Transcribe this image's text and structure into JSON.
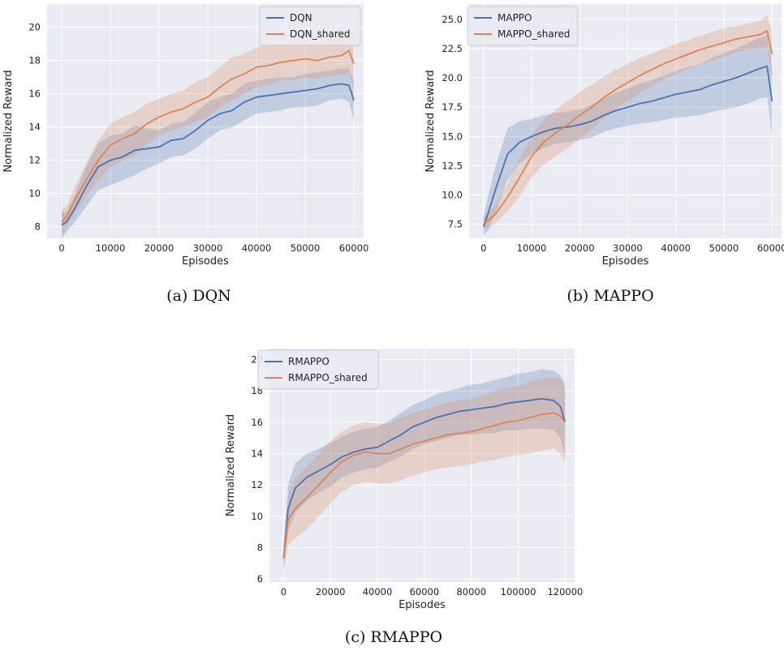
{
  "captions": [
    "(a) DQN",
    "(b) MAPPO",
    "(c) RMAPPO"
  ],
  "colors": {
    "blue": "#4c72b0",
    "orange": "#dd8452",
    "panel_bg": "#eaeaf2",
    "grid": "#ffffff"
  },
  "chart_data": [
    {
      "type": "line",
      "xlabel": "Episodes",
      "ylabel": "Normalized Reward",
      "xlim": [
        -3000,
        62000
      ],
      "ylim": [
        7.3,
        21.4
      ],
      "xticks": [
        0,
        10000,
        20000,
        30000,
        40000,
        50000,
        60000
      ],
      "yticks": [
        8,
        10,
        12,
        14,
        16,
        18,
        20
      ],
      "ytick_labels": [
        "8",
        "10",
        "12",
        "14",
        "16",
        "18",
        "20"
      ],
      "legend_position": "top-right",
      "grid": true,
      "series": [
        {
          "name": "DQN",
          "color": "#4c72b0",
          "x": [
            0,
            1000,
            2500,
            5000,
            7500,
            10000,
            12500,
            15000,
            17500,
            20000,
            22500,
            25000,
            27500,
            30000,
            32500,
            35000,
            37500,
            40000,
            42500,
            45000,
            47500,
            50000,
            52500,
            55000,
            57500,
            59000,
            60000
          ],
          "y": [
            8.1,
            8.3,
            9.0,
            10.4,
            11.6,
            12.0,
            12.2,
            12.6,
            12.7,
            12.8,
            13.2,
            13.3,
            13.8,
            14.4,
            14.8,
            15.0,
            15.5,
            15.8,
            15.9,
            16.0,
            16.1,
            16.2,
            16.3,
            16.5,
            16.6,
            16.5,
            15.6
          ],
          "band": [
            0.8,
            0.6,
            0.8,
            1.2,
            1.4,
            1.5,
            1.4,
            1.5,
            1.2,
            1.0,
            1.0,
            1.0,
            1.1,
            1.1,
            1.0,
            1.0,
            1.1,
            1.0,
            1.0,
            1.0,
            0.9,
            1.0,
            1.0,
            0.9,
            0.9,
            1.0,
            1.2
          ]
        },
        {
          "name": "DQN_shared",
          "color": "#dd8452",
          "x": [
            0,
            1000,
            2500,
            5000,
            7500,
            10000,
            12500,
            15000,
            17500,
            20000,
            22500,
            25000,
            27500,
            30000,
            32500,
            35000,
            37500,
            40000,
            42500,
            45000,
            47500,
            50000,
            52500,
            55000,
            57500,
            59000,
            60000
          ],
          "y": [
            8.3,
            8.6,
            9.5,
            10.8,
            12.0,
            12.9,
            13.3,
            13.6,
            14.2,
            14.6,
            14.9,
            15.1,
            15.5,
            15.8,
            16.4,
            16.9,
            17.2,
            17.6,
            17.7,
            17.9,
            18.0,
            18.1,
            18.0,
            18.2,
            18.3,
            18.6,
            17.8
          ],
          "band": [
            0.8,
            0.6,
            0.8,
            1.0,
            1.2,
            1.3,
            1.3,
            1.3,
            1.2,
            1.1,
            1.1,
            1.1,
            1.2,
            1.2,
            1.2,
            1.3,
            1.2,
            1.2,
            1.2,
            1.1,
            1.2,
            1.1,
            1.1,
            1.1,
            1.2,
            1.3,
            1.5
          ]
        }
      ]
    },
    {
      "type": "line",
      "xlabel": "Episodes",
      "ylabel": "Normalized Reward",
      "xlim": [
        -3000,
        62000
      ],
      "ylim": [
        6.3,
        26.3
      ],
      "xticks": [
        0,
        10000,
        20000,
        30000,
        40000,
        50000,
        60000
      ],
      "yticks": [
        7.5,
        10.0,
        12.5,
        15.0,
        17.5,
        20.0,
        22.5,
        25.0
      ],
      "ytick_labels": [
        "7.5",
        "10.0",
        "12.5",
        "15.0",
        "17.5",
        "20.0",
        "22.5",
        "25.0"
      ],
      "legend_position": "top-left",
      "grid": true,
      "series": [
        {
          "name": "MAPPO",
          "color": "#4c72b0",
          "x": [
            0,
            1000,
            2500,
            5000,
            7500,
            10000,
            12500,
            15000,
            17500,
            20000,
            22500,
            25000,
            27500,
            30000,
            32500,
            35000,
            37500,
            40000,
            42500,
            45000,
            47500,
            50000,
            52500,
            55000,
            57500,
            59000,
            60000
          ],
          "y": [
            7.3,
            8.5,
            10.5,
            13.5,
            14.5,
            15.0,
            15.4,
            15.7,
            15.8,
            16.0,
            16.3,
            16.8,
            17.2,
            17.5,
            17.8,
            18.0,
            18.3,
            18.6,
            18.8,
            19.0,
            19.4,
            19.7,
            20.0,
            20.4,
            20.8,
            21.0,
            18.0
          ],
          "band": [
            0.8,
            1.5,
            2.0,
            2.2,
            1.8,
            1.5,
            1.4,
            1.3,
            1.3,
            1.3,
            1.4,
            1.4,
            1.5,
            1.6,
            1.7,
            1.8,
            1.9,
            2.0,
            2.1,
            2.2,
            2.3,
            2.4,
            2.5,
            2.6,
            2.6,
            2.6,
            3.0
          ]
        },
        {
          "name": "MAPPO_shared",
          "color": "#dd8452",
          "x": [
            0,
            1000,
            2500,
            5000,
            7500,
            10000,
            12500,
            15000,
            17500,
            20000,
            22500,
            25000,
            27500,
            30000,
            32500,
            35000,
            37500,
            40000,
            42500,
            45000,
            47500,
            50000,
            52500,
            55000,
            57500,
            59000,
            60000
          ],
          "y": [
            7.6,
            7.8,
            8.4,
            9.8,
            11.5,
            13.3,
            14.5,
            15.3,
            16.0,
            16.8,
            17.5,
            18.3,
            19.0,
            19.6,
            20.2,
            20.7,
            21.2,
            21.6,
            22.0,
            22.4,
            22.7,
            23.0,
            23.3,
            23.5,
            23.7,
            24.0,
            22.0
          ],
          "band": [
            0.5,
            0.6,
            0.8,
            1.2,
            1.6,
            1.8,
            1.9,
            2.0,
            2.0,
            2.0,
            1.9,
            1.8,
            1.7,
            1.6,
            1.5,
            1.4,
            1.3,
            1.3,
            1.2,
            1.2,
            1.2,
            1.2,
            1.1,
            1.1,
            1.2,
            1.3,
            2.0
          ]
        }
      ]
    },
    {
      "type": "line",
      "xlabel": "Episodes",
      "ylabel": "Normalized Reward",
      "xlim": [
        -6000,
        124000
      ],
      "ylim": [
        5.8,
        20.7
      ],
      "xticks": [
        0,
        20000,
        40000,
        60000,
        80000,
        100000,
        120000
      ],
      "yticks": [
        6,
        8,
        10,
        12,
        14,
        16,
        18,
        20
      ],
      "ytick_labels": [
        "6",
        "8",
        "10",
        "12",
        "14",
        "16",
        "18",
        "20"
      ],
      "legend_position": "top-left",
      "grid": true,
      "series": [
        {
          "name": "RMAPPO",
          "color": "#4c72b0",
          "x": [
            0,
            2000,
            5000,
            10000,
            15000,
            20000,
            25000,
            30000,
            35000,
            40000,
            45000,
            50000,
            55000,
            60000,
            65000,
            70000,
            75000,
            80000,
            85000,
            90000,
            95000,
            100000,
            105000,
            110000,
            115000,
            118000,
            120000
          ],
          "y": [
            7.3,
            10.5,
            11.8,
            12.5,
            12.9,
            13.3,
            13.8,
            14.1,
            14.3,
            14.4,
            14.8,
            15.2,
            15.7,
            16.0,
            16.3,
            16.5,
            16.7,
            16.8,
            16.9,
            17.0,
            17.2,
            17.3,
            17.4,
            17.5,
            17.4,
            17.0,
            16.0
          ],
          "band": [
            0.8,
            1.5,
            1.6,
            1.5,
            1.4,
            1.4,
            1.3,
            1.3,
            1.3,
            1.3,
            1.3,
            1.4,
            1.4,
            1.4,
            1.5,
            1.5,
            1.5,
            1.6,
            1.6,
            1.7,
            1.7,
            1.8,
            1.8,
            1.9,
            1.9,
            2.0,
            2.2
          ]
        },
        {
          "name": "RMAPPO_shared",
          "color": "#dd8452",
          "x": [
            0,
            2000,
            5000,
            10000,
            15000,
            20000,
            25000,
            30000,
            35000,
            40000,
            45000,
            50000,
            55000,
            60000,
            65000,
            70000,
            75000,
            80000,
            85000,
            90000,
            95000,
            100000,
            105000,
            110000,
            115000,
            118000,
            120000
          ],
          "y": [
            7.3,
            9.8,
            10.5,
            11.2,
            12.0,
            12.8,
            13.5,
            13.9,
            14.1,
            14.0,
            14.0,
            14.3,
            14.6,
            14.8,
            15.0,
            15.2,
            15.3,
            15.4,
            15.6,
            15.8,
            16.0,
            16.1,
            16.3,
            16.5,
            16.6,
            16.4,
            16.0
          ],
          "band": [
            0.8,
            1.6,
            1.9,
            2.0,
            2.0,
            2.0,
            1.9,
            1.9,
            1.9,
            1.9,
            1.9,
            2.0,
            2.0,
            2.0,
            2.0,
            2.1,
            2.1,
            2.1,
            2.1,
            2.2,
            2.2,
            2.2,
            2.3,
            2.3,
            2.3,
            2.4,
            2.6
          ]
        }
      ]
    }
  ]
}
